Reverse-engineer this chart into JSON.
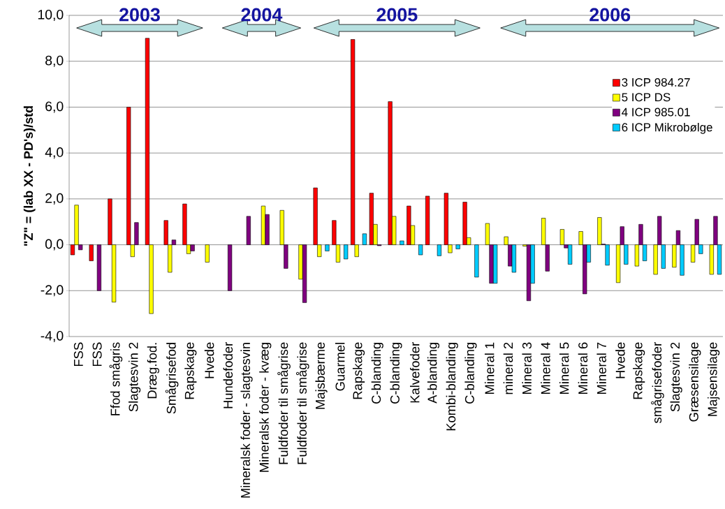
{
  "chart_data": {
    "type": "bar",
    "ylabel": "\"Z\" = (lab XX - PD's)/std",
    "categories": [
      "FSS",
      "FSS",
      "Ffod smågris",
      "Slagtesvin 2",
      "Dræg.fod.",
      "Smågrisefod",
      "Rapskage",
      "Hvede",
      "Hundefoder",
      "Mineralsk foder - slagtesvin",
      "Mineralsk foder - kvæg",
      "Fuldfoder til smågrise",
      "Fuldfoder til smågrise",
      "Majsbærme",
      "Guarmel",
      "Rapskage",
      "C-blanding",
      "C-blanding",
      "Kalvefoder",
      "A-blanding",
      "Kombi-blanding",
      "C-blanding",
      "Mineral 1",
      "mineral 2",
      "Mineral 3",
      "Mineral 4",
      "Mineral 5",
      "Mineral 6",
      "Mineral 7",
      "Hvede",
      "Rapskage",
      "smågrisefoder",
      "Slagtesvin 2",
      "Græsensilage",
      "Majsensilage"
    ],
    "series": [
      {
        "name": "3 ICP 984.27",
        "color": "#ff0000",
        "values": [
          -0.44,
          -0.7,
          2.0,
          6.0,
          9.0,
          1.06,
          1.78,
          null,
          null,
          null,
          null,
          null,
          null,
          2.48,
          1.06,
          8.95,
          2.25,
          6.24,
          1.69,
          2.12,
          2.25,
          1.86,
          null,
          null,
          null,
          null,
          null,
          null,
          null,
          null,
          null,
          null,
          null,
          null,
          null
        ]
      },
      {
        "name": "5 ICP DS",
        "color": "#ffff00",
        "values": [
          1.73,
          null,
          -2.5,
          -0.52,
          -3.0,
          -1.2,
          -0.39,
          -0.76,
          null,
          null,
          1.69,
          1.5,
          -1.5,
          -0.52,
          -0.76,
          -0.52,
          0.89,
          1.24,
          0.84,
          null,
          -0.35,
          0.31,
          0.93,
          0.35,
          -0.06,
          1.16,
          0.67,
          0.58,
          1.19,
          -1.65,
          -0.93,
          -1.29,
          -0.98,
          -0.76,
          -1.29
        ]
      },
      {
        "name": "4 ICP 985.01",
        "color": "#800080",
        "values": [
          -0.22,
          -2.0,
          null,
          0.97,
          null,
          0.21,
          -0.27,
          null,
          -2.0,
          1.24,
          1.32,
          -1.03,
          -2.52,
          null,
          null,
          null,
          -0.04,
          null,
          null,
          null,
          null,
          null,
          -1.68,
          -0.93,
          -2.44,
          -1.15,
          -0.14,
          -2.14,
          0.03,
          0.79,
          0.89,
          1.24,
          0.62,
          1.11,
          1.24
        ]
      },
      {
        "name": "6 ICP Mikrobølge",
        "color": "#00ccff",
        "values": [
          null,
          null,
          null,
          null,
          null,
          null,
          null,
          null,
          null,
          null,
          null,
          null,
          null,
          -0.27,
          -0.62,
          0.48,
          null,
          0.17,
          -0.44,
          -0.48,
          -0.18,
          -1.41,
          -1.68,
          -1.2,
          -1.68,
          null,
          -0.85,
          -0.76,
          -0.89,
          -0.85,
          -0.7,
          -1.03,
          -1.33,
          -0.39,
          -1.29
        ]
      }
    ],
    "ylim": [
      -4,
      10
    ],
    "yticks": [
      {
        "value": -4,
        "label": "-4,0"
      },
      {
        "value": -2,
        "label": "-2,0"
      },
      {
        "value": 0,
        "label": "0,0"
      },
      {
        "value": 2,
        "label": "2,0"
      },
      {
        "value": 4,
        "label": "4,0"
      },
      {
        "value": 6,
        "label": "6,0"
      },
      {
        "value": 8,
        "label": "8,0"
      },
      {
        "value": 10,
        "label": "10,0"
      }
    ],
    "grid": "y",
    "legend": "right",
    "annotations": [
      "2003",
      "2004",
      "2005",
      "2006"
    ]
  }
}
